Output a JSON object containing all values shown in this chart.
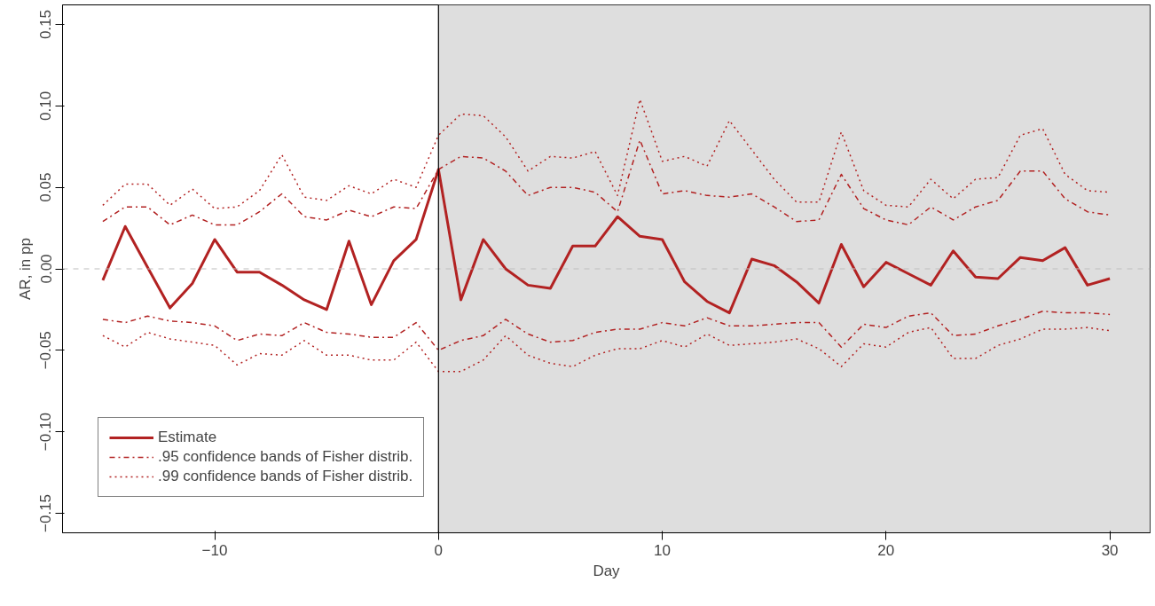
{
  "chart_data": {
    "type": "line",
    "xlabel": "Day",
    "ylabel": "AR, in pp",
    "x": [
      -15,
      -14,
      -13,
      -12,
      -11,
      -10,
      -9,
      -8,
      -7,
      -6,
      -5,
      -4,
      -3,
      -2,
      -1,
      0,
      1,
      2,
      3,
      4,
      5,
      6,
      7,
      8,
      9,
      10,
      11,
      12,
      13,
      14,
      15,
      16,
      17,
      18,
      19,
      20,
      21,
      22,
      23,
      24,
      25,
      26,
      27,
      28,
      29,
      30
    ],
    "series": [
      {
        "name": "Estimate",
        "color": "#b22222",
        "line_style": "solid",
        "values": [
          -0.007,
          0.026,
          0.001,
          -0.024,
          -0.009,
          0.018,
          -0.002,
          -0.002,
          -0.01,
          -0.019,
          -0.025,
          0.017,
          -0.022,
          0.005,
          0.018,
          0.061,
          -0.019,
          0.018,
          0.0,
          -0.01,
          -0.012,
          0.014,
          0.014,
          0.032,
          0.02,
          0.018,
          -0.008,
          -0.02,
          -0.027,
          0.006,
          0.002,
          -0.008,
          -0.021,
          0.015,
          -0.011,
          0.004,
          -0.003,
          -0.01,
          0.011,
          -0.005,
          -0.006,
          0.007,
          0.005,
          0.013,
          -0.01,
          -0.006
        ]
      },
      {
        "name": ".95 confidence bands of Fisher distrib.",
        "color": "#b22222",
        "line_style": "dashdot",
        "values": [
          0.029,
          0.038,
          0.038,
          0.027,
          0.033,
          0.027,
          0.027,
          0.035,
          0.046,
          0.032,
          0.03,
          0.036,
          0.032,
          0.038,
          0.037,
          0.061,
          0.069,
          0.068,
          0.06,
          0.045,
          0.05,
          0.05,
          0.047,
          0.035,
          0.079,
          0.046,
          0.048,
          0.045,
          0.044,
          0.046,
          0.038,
          0.029,
          0.03,
          0.058,
          0.037,
          0.03,
          0.027,
          0.038,
          0.03,
          0.038,
          0.042,
          0.06,
          0.06,
          0.043,
          0.035,
          0.033
        ]
      },
      {
        "color": "#b22222",
        "line_style": "dashdot",
        "values": [
          -0.031,
          -0.033,
          -0.029,
          -0.032,
          -0.033,
          -0.035,
          -0.044,
          -0.04,
          -0.041,
          -0.033,
          -0.039,
          -0.04,
          -0.042,
          -0.042,
          -0.033,
          -0.05,
          -0.044,
          -0.041,
          -0.031,
          -0.04,
          -0.045,
          -0.044,
          -0.039,
          -0.037,
          -0.037,
          -0.033,
          -0.035,
          -0.03,
          -0.035,
          -0.035,
          -0.034,
          -0.033,
          -0.033,
          -0.048,
          -0.034,
          -0.036,
          -0.029,
          -0.027,
          -0.041,
          -0.04,
          -0.035,
          -0.031,
          -0.026,
          -0.027,
          -0.027,
          -0.028
        ]
      },
      {
        "name": ".99 confidence bands of Fisher distrib.",
        "color": "#b22222",
        "line_style": "dotted",
        "values": [
          0.039,
          0.052,
          0.052,
          0.039,
          0.049,
          0.037,
          0.038,
          0.048,
          0.07,
          0.044,
          0.042,
          0.051,
          0.046,
          0.055,
          0.05,
          0.082,
          0.095,
          0.094,
          0.081,
          0.06,
          0.069,
          0.068,
          0.072,
          0.045,
          0.104,
          0.066,
          0.069,
          0.063,
          0.091,
          0.073,
          0.055,
          0.041,
          0.041,
          0.084,
          0.048,
          0.039,
          0.038,
          0.055,
          0.043,
          0.055,
          0.056,
          0.082,
          0.086,
          0.058,
          0.048,
          0.047
        ]
      },
      {
        "color": "#b22222",
        "line_style": "dotted",
        "values": [
          -0.041,
          -0.048,
          -0.039,
          -0.043,
          -0.045,
          -0.047,
          -0.059,
          -0.052,
          -0.053,
          -0.044,
          -0.053,
          -0.053,
          -0.056,
          -0.056,
          -0.045,
          -0.063,
          -0.063,
          -0.056,
          -0.041,
          -0.053,
          -0.058,
          -0.06,
          -0.053,
          -0.049,
          -0.049,
          -0.044,
          -0.048,
          -0.04,
          -0.047,
          -0.046,
          -0.045,
          -0.043,
          -0.049,
          -0.06,
          -0.046,
          -0.048,
          -0.039,
          -0.036,
          -0.055,
          -0.055,
          -0.047,
          -0.043,
          -0.037,
          -0.037,
          -0.036,
          -0.038
        ]
      }
    ],
    "xlim": [
      -16.8,
      31.8
    ],
    "ylim": [
      -0.162,
      0.162
    ],
    "xticks": [
      {
        "value": -10,
        "label": "−10"
      },
      0,
      10,
      20,
      30
    ],
    "yticks": [
      {
        "value": -0.15,
        "label": "−0.15"
      },
      {
        "value": -0.1,
        "label": "−0.10"
      },
      {
        "value": -0.05,
        "label": "−0.05"
      },
      {
        "value": 0,
        "label": "0.00"
      },
      {
        "value": 0.05,
        "label": "0.05"
      },
      {
        "value": 0.1,
        "label": "0.10"
      },
      {
        "value": 0.15,
        "label": "0.15"
      }
    ],
    "ref_lines": [
      {
        "axis": "y",
        "value": 0,
        "color": "#bebebe",
        "line_style": "dashed"
      },
      {
        "axis": "x",
        "value": 0,
        "color": "#000000",
        "line_style": "solid"
      }
    ],
    "bands": [
      {
        "axis": "x",
        "from": 0,
        "to": 31.8,
        "color": "#dedede"
      }
    ],
    "grid": false,
    "legend": "bottom left"
  }
}
